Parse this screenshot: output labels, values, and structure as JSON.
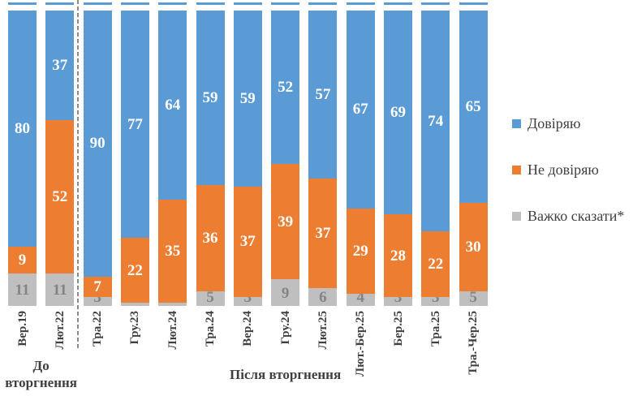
{
  "chart_data": {
    "type": "bar",
    "stacked": true,
    "percent": true,
    "title": "",
    "xlabel": "",
    "ylabel": "",
    "ylim": [
      0,
      100
    ],
    "grid": false,
    "legend_position": "right",
    "categories": [
      "Вер.19",
      "Лют.22",
      "Тра.22",
      "Гру.23",
      "Лют.24",
      "Тра.24",
      "Вер.24",
      "Гру.24",
      "Лют.25",
      "Лют.-Бер.25",
      "Бер.25",
      "Тра.25",
      "Тра.-Чер.25"
    ],
    "series": [
      {
        "key": "trust",
        "name": "Довіряю",
        "color": "#5B9BD5",
        "label_color": "#ffffff",
        "values": [
          80,
          37,
          90,
          77,
          64,
          59,
          59,
          52,
          57,
          67,
          69,
          74,
          65
        ]
      },
      {
        "key": "distrust",
        "name": "Не довіряю",
        "color": "#ED7D31",
        "label_color": "#ffffff",
        "values": [
          9,
          52,
          7,
          22,
          35,
          36,
          37,
          39,
          37,
          29,
          28,
          22,
          30
        ]
      },
      {
        "key": "hard-to-say",
        "name": "Важко сказати*",
        "color": "#BFBFBF",
        "label_color": "#848484",
        "values": [
          11,
          11,
          3,
          1,
          1,
          5,
          3,
          9,
          6,
          4,
          3,
          3,
          5
        ]
      }
    ],
    "groups": [
      {
        "label": "До вторгнення",
        "from": 0,
        "to": 1
      },
      {
        "label": "Після вторгнення",
        "from": 2,
        "to": 12
      }
    ],
    "divider_after_category_index": 1,
    "divider_color": "#8a8a8a"
  }
}
